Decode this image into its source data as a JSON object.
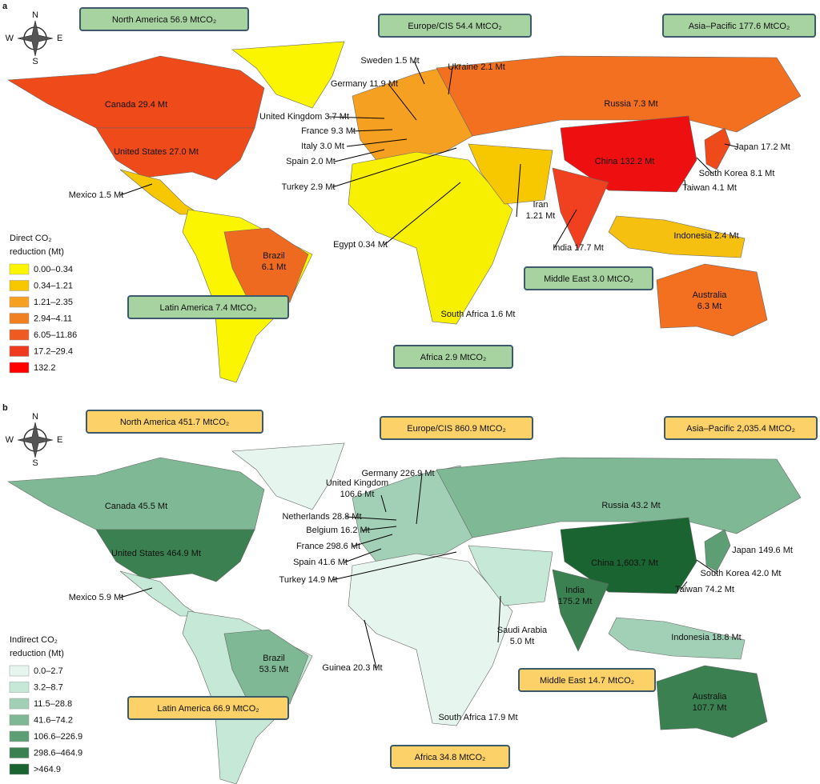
{
  "panels": [
    {
      "label": "a",
      "compass": {
        "n": "N",
        "s": "S",
        "e": "E",
        "w": "W"
      },
      "regions": [
        "North America 56.9 MtCO₂",
        "Europe/CIS 54.4 MtCO₂",
        "Asia–Pacific 177.6 MtCO₂",
        "Middle East 3.0 MtCO₂",
        "Latin America 7.4 MtCO₂",
        "Africa 2.9 MtCO₂"
      ],
      "countries": [
        "Canada 29.4 Mt",
        "United States 27.0 Mt",
        "Mexico 1.5 Mt",
        [
          "Brazil",
          "6.1 Mt"
        ],
        "Sweden 1.5 Mt",
        "Ukraine 2.1 Mt",
        "Germany 11.9 Mt",
        "United Kingdom 3.7 Mt",
        "France 9.3 Mt",
        "Italy 3.0 Mt",
        "Spain 2.0 Mt",
        "Turkey 2.9 Mt",
        "Egypt 0.34 Mt",
        [
          "Iran",
          "1.21 Mt"
        ],
        "India 17.7 Mt",
        "Russia 7.3 Mt",
        "China 132.2 Mt",
        "Japan 17.2 Mt",
        "South Korea 8.1 Mt",
        "Taiwan 4.1 Mt",
        "Indonesia 2.4 Mt",
        [
          "Australia",
          "6.3 Mt"
        ],
        "South Africa 1.6 Mt"
      ],
      "legend": {
        "title": [
          "Direct CO₂",
          "reduction (Mt)"
        ],
        "items": [
          {
            "label": "0.00–0.34",
            "color": "#fbf500"
          },
          {
            "label": "0.34–1.21",
            "color": "#f7c700"
          },
          {
            "label": "1.21–2.35",
            "color": "#f5a020"
          },
          {
            "label": "2.94–4.11",
            "color": "#f08020"
          },
          {
            "label": "6.05–11.86",
            "color": "#ee5a20"
          },
          {
            "label": "17.2–29.4",
            "color": "#f03a20"
          },
          {
            "label": "132.2",
            "color": "#ff0000"
          }
        ]
      }
    },
    {
      "label": "b",
      "compass": {
        "n": "N",
        "s": "S",
        "e": "E",
        "w": "W"
      },
      "regions": [
        "North America 451.7 MtCO₂",
        "Europe/CIS 860.9 MtCO₂",
        "Asia–Pacific 2,035.4 MtCO₂",
        "Middle East 14.7 MtCO₂",
        "Latin America 66.9 MtCO₂",
        "Africa 34.8 MtCO₂"
      ],
      "countries": [
        "Canada 45.5 Mt",
        "United States 464.9 Mt",
        "Mexico 5.9 Mt",
        [
          "Brazil",
          "53.5 Mt"
        ],
        "Germany 226.9 Mt",
        [
          "United Kingdom",
          "106.6 Mt"
        ],
        "Netherlands 28.8 Mt",
        "Belgium 16.2 Mt",
        "France 298.6 Mt",
        "Spain 41.6 Mt",
        "Turkey 14.9 Mt",
        "Russia 43.2 Mt",
        "China 1,603.7 Mt",
        [
          "India",
          "175.2 Mt"
        ],
        "Japan 149.6 Mt",
        "South Korea 42.0 Mt",
        "Taiwan 74.2 Mt",
        "Indonesia 18.8 Mt",
        [
          "Saudi Arabia",
          "5.0 Mt"
        ],
        "Guinea 20.3 Mt",
        [
          "Australia",
          "107.7 Mt"
        ],
        "South Africa 17.9 Mt"
      ],
      "legend": {
        "title": [
          "Indirect CO₂",
          "reduction (Mt)"
        ],
        "items": [
          {
            "label": "0.0–2.7",
            "color": "#e6f5ee"
          },
          {
            "label": "3.2–8.7",
            "color": "#c6e8d6"
          },
          {
            "label": "11.5–28.8",
            "color": "#a2d0b6"
          },
          {
            "label": "41.6–74.2",
            "color": "#7fb894"
          },
          {
            "label": "106.6–226.9",
            "color": "#5e9e74"
          },
          {
            "label": "298.6–464.9",
            "color": "#3a8050"
          },
          {
            "label": ">464.9",
            "color": "#1a6432"
          }
        ]
      }
    }
  ]
}
